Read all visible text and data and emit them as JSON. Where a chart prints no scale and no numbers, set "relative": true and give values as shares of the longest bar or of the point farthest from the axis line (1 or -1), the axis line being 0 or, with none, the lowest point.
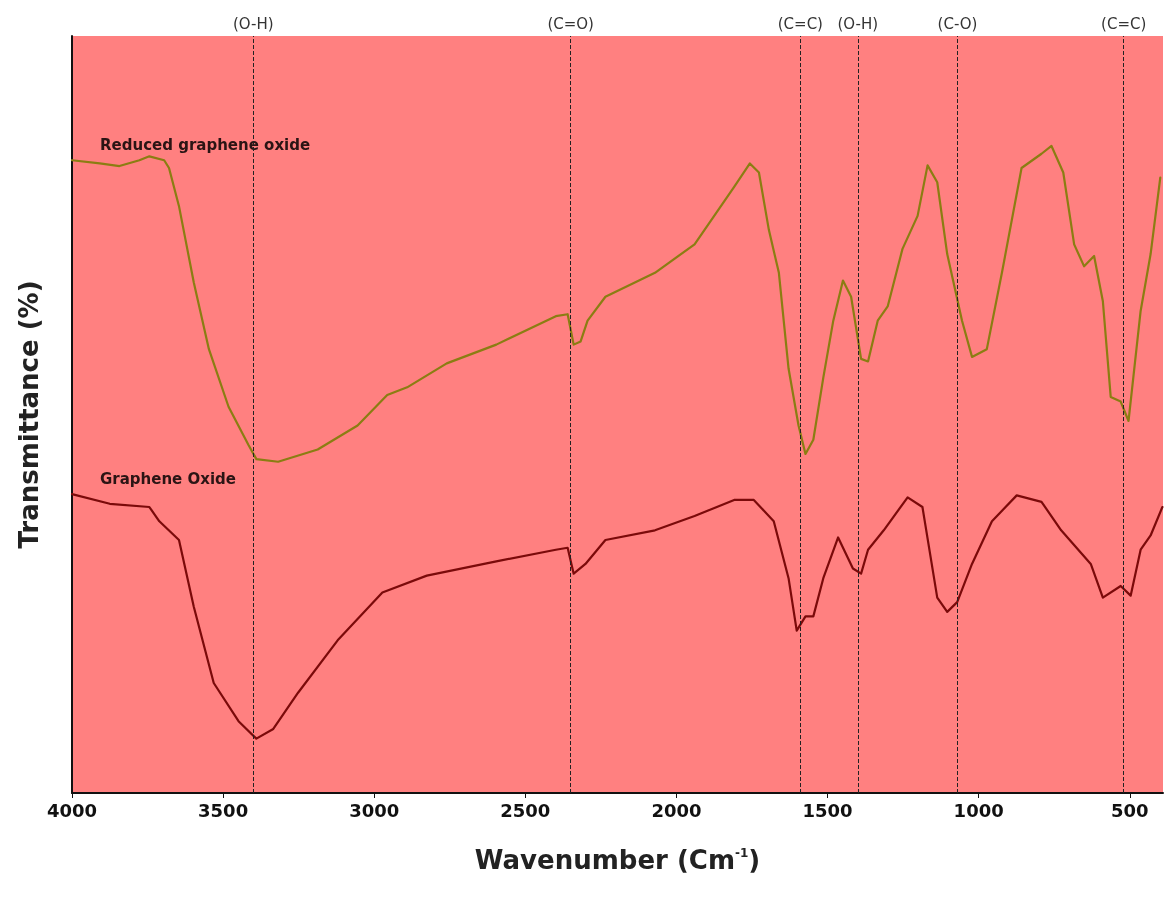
{
  "chart_data": {
    "type": "line",
    "relative": true,
    "xlabel": "Wavenumber (Cm$^{-1}$)",
    "ylabel": "Transmittance (%)",
    "xlim": [
      4000,
      390
    ],
    "xticks": [
      4000,
      3500,
      3000,
      2500,
      2000,
      1500,
      1000,
      500
    ],
    "grid": false,
    "legend": false,
    "marker": "none",
    "line_style": "solid",
    "series": [
      {
        "name": "Reduced graphene oxide",
        "color": "#8b7d12",
        "x": [
          4000,
          3908,
          3843,
          3777,
          3744,
          3695,
          3679,
          3646,
          3597,
          3547,
          3482,
          3416,
          3390,
          3318,
          3187,
          3055,
          2957,
          2891,
          2760,
          2596,
          2399,
          2360,
          2340,
          2317,
          2294,
          2235,
          2071,
          1940,
          1809,
          1757,
          1727,
          1694,
          1661,
          1629,
          1596,
          1573,
          1547,
          1514,
          1481,
          1449,
          1422,
          1389,
          1366,
          1334,
          1301,
          1252,
          1202,
          1169,
          1137,
          1104,
          1055,
          1022,
          973,
          923,
          858,
          792,
          759,
          720,
          684,
          651,
          618,
          589,
          563,
          530,
          504,
          464,
          431,
          399
        ],
        "values": [
          0.978,
          0.973,
          0.969,
          0.978,
          0.984,
          0.978,
          0.966,
          0.907,
          0.789,
          0.686,
          0.597,
          0.538,
          0.516,
          0.512,
          0.531,
          0.568,
          0.615,
          0.627,
          0.664,
          0.693,
          0.737,
          0.74,
          0.693,
          0.698,
          0.73,
          0.767,
          0.804,
          0.848,
          0.937,
          0.973,
          0.959,
          0.87,
          0.804,
          0.656,
          0.568,
          0.524,
          0.546,
          0.642,
          0.73,
          0.792,
          0.767,
          0.671,
          0.667,
          0.73,
          0.752,
          0.841,
          0.892,
          0.97,
          0.944,
          0.833,
          0.73,
          0.674,
          0.686,
          0.804,
          0.966,
          0.988,
          1.0,
          0.959,
          0.848,
          0.814,
          0.83,
          0.76,
          0.612,
          0.605,
          0.575,
          0.745,
          0.833,
          0.951
        ]
      },
      {
        "name": "Graphene Oxide",
        "color": "#7b0a0a",
        "x": [
          4000,
          3875,
          3744,
          3711,
          3646,
          3597,
          3531,
          3449,
          3390,
          3334,
          3252,
          3121,
          2973,
          2826,
          2596,
          2399,
          2360,
          2340,
          2301,
          2235,
          2071,
          1940,
          1809,
          1744,
          1678,
          1629,
          1602,
          1573,
          1547,
          1514,
          1465,
          1416,
          1389,
          1366,
          1314,
          1235,
          1186,
          1137,
          1104,
          1071,
          1022,
          956,
          874,
          792,
          727,
          629,
          589,
          530,
          497,
          464,
          431,
          392
        ],
        "values": [
          0.462,
          0.447,
          0.442,
          0.42,
          0.391,
          0.288,
          0.17,
          0.111,
          0.084,
          0.099,
          0.155,
          0.236,
          0.31,
          0.336,
          0.358,
          0.376,
          0.379,
          0.339,
          0.354,
          0.391,
          0.406,
          0.428,
          0.453,
          0.453,
          0.42,
          0.332,
          0.251,
          0.273,
          0.273,
          0.332,
          0.395,
          0.347,
          0.339,
          0.376,
          0.406,
          0.457,
          0.442,
          0.302,
          0.28,
          0.295,
          0.354,
          0.42,
          0.46,
          0.45,
          0.406,
          0.354,
          0.302,
          0.32,
          0.305,
          0.376,
          0.398,
          0.442
        ]
      }
    ],
    "ref_lines": [
      {
        "axis": "x",
        "value": 3400,
        "label": "(O-H)",
        "line_style": "dashed"
      },
      {
        "axis": "x",
        "value": 2350,
        "label": "(C=O)",
        "line_style": "dashed"
      },
      {
        "axis": "x",
        "value": 1590,
        "label": "(C=C)",
        "line_style": "dashed"
      },
      {
        "axis": "x",
        "value": 1400,
        "label": "(O-H)",
        "line_style": "dashed"
      },
      {
        "axis": "x",
        "value": 1070,
        "label": "(C-O)",
        "line_style": "dashed"
      },
      {
        "axis": "x",
        "value": 520,
        "label": "(C=C)",
        "line_style": "dashed"
      }
    ]
  }
}
